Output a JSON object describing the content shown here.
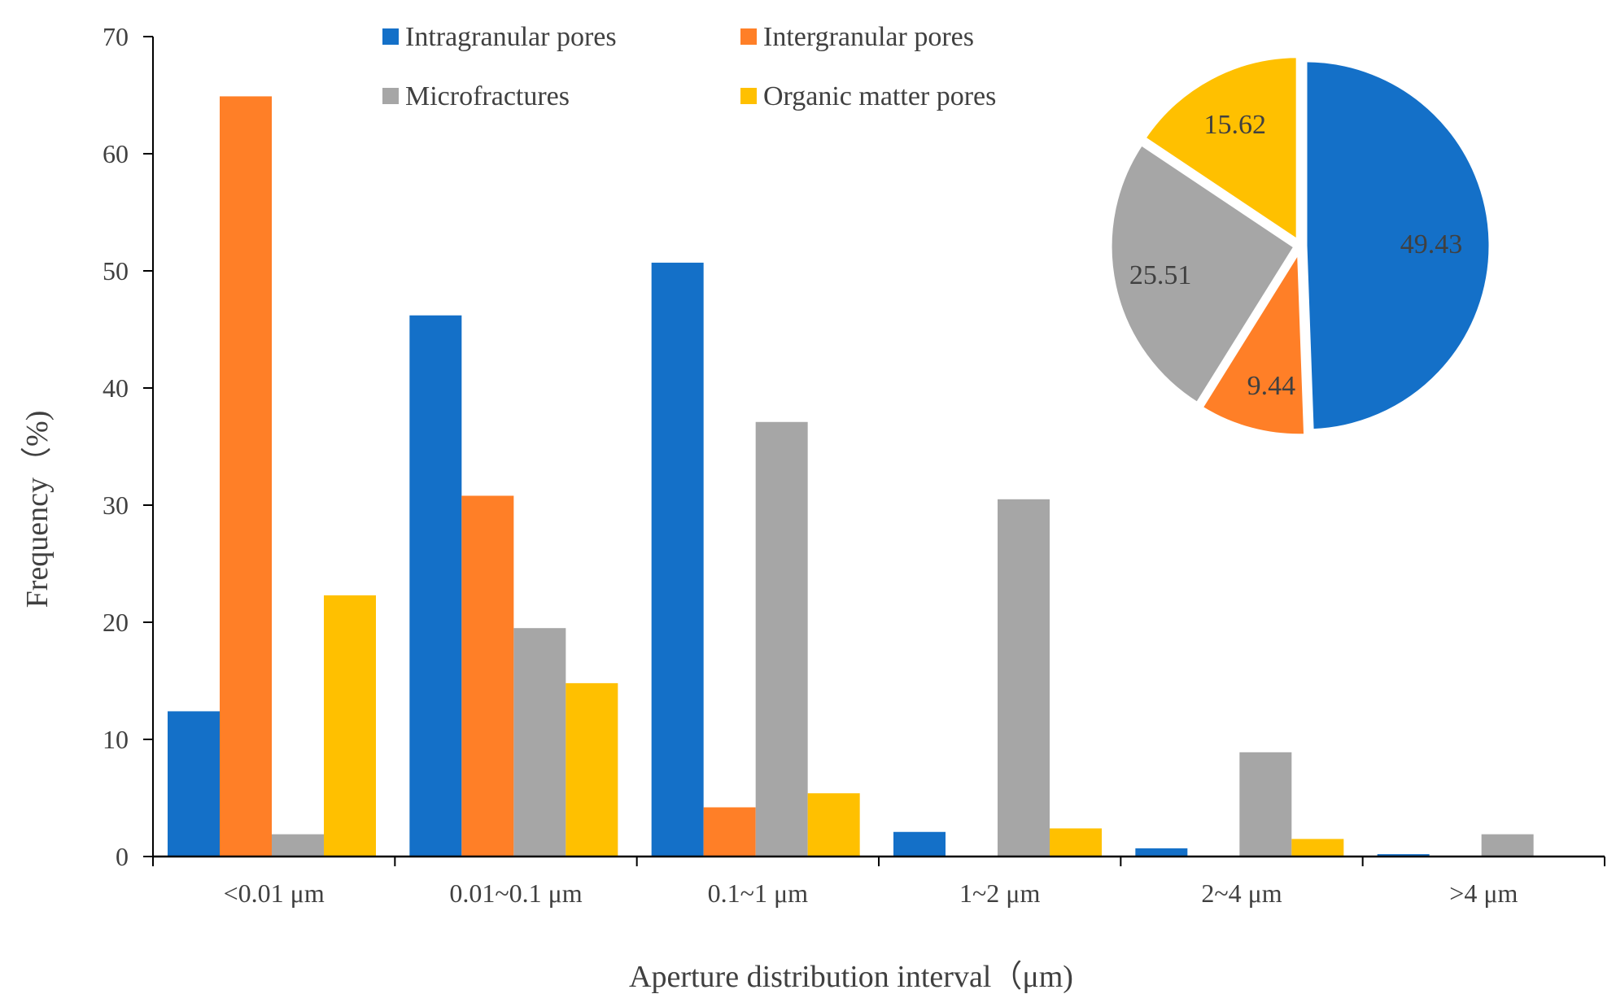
{
  "chart_data": [
    {
      "type": "bar",
      "categories": [
        "<0.01 μm",
        "0.01~0.1 μm",
        "0.1~1 μm",
        "1~2 μm",
        "2~4 μm",
        ">4 μm"
      ],
      "series": [
        {
          "name": "Intragranular pores",
          "color": "#1470C8",
          "values": [
            12.4,
            46.2,
            50.7,
            2.1,
            0.7,
            0.2
          ]
        },
        {
          "name": "Intergranular pores",
          "color": "#FF7F27",
          "values": [
            64.9,
            30.8,
            4.2,
            0,
            0,
            0
          ]
        },
        {
          "name": "Microfractures",
          "color": "#A6A6A6",
          "values": [
            1.9,
            19.5,
            37.1,
            30.5,
            8.9,
            1.9
          ]
        },
        {
          "name": "Organic matter pores",
          "color": "#FFC000",
          "values": [
            22.3,
            14.8,
            5.4,
            2.4,
            1.5,
            0
          ]
        }
      ],
      "yticks": [
        "0",
        "10",
        "20",
        "30",
        "40",
        "50",
        "60",
        "70"
      ],
      "ylim": [
        0,
        70
      ],
      "xlabel": "Aperture distribution interval（μm)",
      "ylabel": "Frequency（%)",
      "legend_position": "top"
    },
    {
      "type": "pie",
      "slices": [
        {
          "name": "Intragranular pores",
          "label": "49.43",
          "value": 49.43,
          "color": "#1470C8"
        },
        {
          "name": "Intergranular pores",
          "label": "9.44",
          "value": 9.44,
          "color": "#FF7F27"
        },
        {
          "name": "Microfractures",
          "label": "25.51",
          "value": 25.51,
          "color": "#A6A6A6"
        },
        {
          "name": "Organic matter pores",
          "label": "15.62",
          "value": 15.62,
          "color": "#FFC000"
        }
      ],
      "legend_position": "top-right"
    }
  ]
}
